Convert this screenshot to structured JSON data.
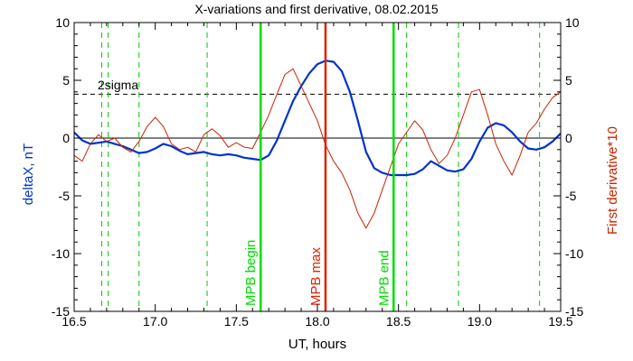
{
  "chart_data": {
    "type": "line",
    "title": "X-variations and first derivative, 08.02.2015",
    "xlabel": "UT, hours",
    "ylabel_left": "deltaX, nT",
    "ylabel_right": "First derivative*10",
    "xlim": [
      16.5,
      19.5
    ],
    "ylim": [
      -15,
      10
    ],
    "xticks": [
      "16.5",
      "17.0",
      "17.5",
      "18.0",
      "18.5",
      "19.0",
      "19.5"
    ],
    "yticks_left": [
      "10",
      "5",
      "0",
      "-5",
      "-10",
      "-15"
    ],
    "yticks_right": [
      "10",
      "5",
      "0",
      "-5",
      "-10",
      "-15"
    ],
    "threshold": {
      "label": "2sigma",
      "value": 3.8
    },
    "colors": {
      "deltax": "#0033cc",
      "derivative": "#cc2200",
      "mpb_edge": "#00dd00",
      "mpb_max": "#dd2200",
      "extrema": "#00cc00"
    },
    "vertical_markers": [
      {
        "x": 17.65,
        "label": "MPB begin",
        "kind": "edge"
      },
      {
        "x": 18.05,
        "label": "MPB max",
        "kind": "max"
      },
      {
        "x": 18.47,
        "label": "MPB end",
        "kind": "edge"
      }
    ],
    "dashed_verticals": [
      16.67,
      16.71,
      16.9,
      17.32,
      18.55,
      18.87,
      19.37
    ],
    "series": [
      {
        "key": "deltax",
        "x": [
          16.5,
          16.55,
          16.6,
          16.65,
          16.7,
          16.75,
          16.8,
          16.85,
          16.9,
          16.95,
          17.0,
          17.05,
          17.1,
          17.15,
          17.2,
          17.25,
          17.3,
          17.35,
          17.4,
          17.45,
          17.5,
          17.55,
          17.6,
          17.65,
          17.7,
          17.75,
          17.8,
          17.85,
          17.9,
          17.95,
          18.0,
          18.05,
          18.1,
          18.15,
          18.2,
          18.25,
          18.3,
          18.35,
          18.4,
          18.45,
          18.5,
          18.55,
          18.6,
          18.65,
          18.7,
          18.75,
          18.8,
          18.85,
          18.9,
          18.95,
          19.0,
          19.05,
          19.1,
          19.15,
          19.2,
          19.25,
          19.3,
          19.35,
          19.4,
          19.45,
          19.5
        ],
        "y": [
          0.5,
          -0.2,
          -0.5,
          -0.4,
          -0.3,
          -0.5,
          -0.7,
          -1.0,
          -1.3,
          -1.2,
          -0.9,
          -0.5,
          -0.7,
          -1.1,
          -1.4,
          -1.3,
          -1.2,
          -1.4,
          -1.5,
          -1.4,
          -1.5,
          -1.7,
          -1.8,
          -1.9,
          -1.5,
          -0.2,
          1.5,
          3.2,
          4.5,
          5.6,
          6.4,
          6.7,
          6.6,
          5.8,
          4.0,
          1.5,
          -1.2,
          -2.6,
          -3.0,
          -3.2,
          -3.2,
          -3.2,
          -3.1,
          -2.7,
          -2.0,
          -2.4,
          -2.8,
          -2.9,
          -2.7,
          -1.8,
          -0.3,
          0.9,
          1.3,
          1.1,
          0.5,
          -0.3,
          -0.9,
          -1.0,
          -0.8,
          -0.3,
          0.4
        ]
      },
      {
        "key": "derivative",
        "x": [
          16.5,
          16.55,
          16.6,
          16.65,
          16.7,
          16.75,
          16.8,
          16.85,
          16.9,
          16.95,
          17.0,
          17.05,
          17.1,
          17.15,
          17.2,
          17.25,
          17.3,
          17.35,
          17.4,
          17.45,
          17.5,
          17.55,
          17.6,
          17.65,
          17.7,
          17.75,
          17.8,
          17.85,
          17.9,
          17.95,
          18.0,
          18.05,
          18.1,
          18.15,
          18.2,
          18.25,
          18.3,
          18.35,
          18.4,
          18.45,
          18.5,
          18.55,
          18.6,
          18.65,
          18.7,
          18.75,
          18.8,
          18.85,
          18.9,
          18.95,
          19.0,
          19.05,
          19.1,
          19.15,
          19.2,
          19.25,
          19.3,
          19.35,
          19.4,
          19.45,
          19.5
        ],
        "y": [
          -1.5,
          -2.0,
          -0.5,
          0.3,
          -0.3,
          0.0,
          -0.8,
          -1.2,
          -0.3,
          1.0,
          1.8,
          1.0,
          -0.5,
          -1.0,
          -0.8,
          -1.2,
          0.3,
          0.8,
          0.2,
          -0.8,
          -0.4,
          -0.8,
          -0.9,
          0.5,
          2.0,
          3.8,
          5.5,
          6.0,
          4.5,
          3.0,
          1.5,
          -0.6,
          -2.0,
          -3.0,
          -4.5,
          -6.5,
          -7.8,
          -6.5,
          -4.5,
          -2.5,
          -0.5,
          0.5,
          1.5,
          0.7,
          -1.0,
          -2.2,
          -1.5,
          0.0,
          2.0,
          4.0,
          4.2,
          2.0,
          -0.5,
          -2.0,
          -3.2,
          -1.5,
          0.5,
          1.3,
          2.5,
          3.5,
          4.0
        ]
      }
    ]
  }
}
